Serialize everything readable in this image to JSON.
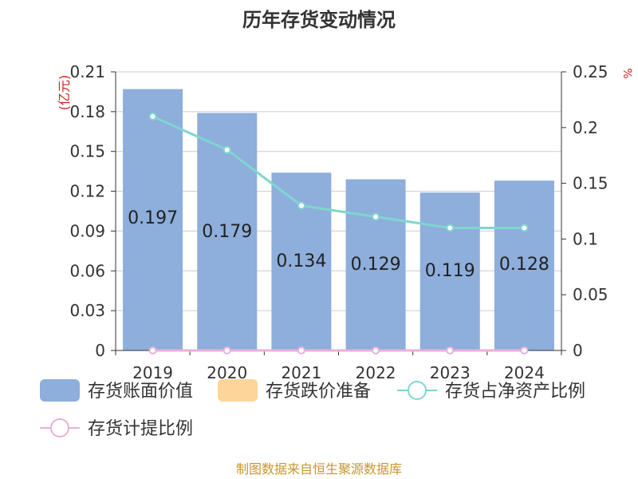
{
  "chart_data": {
    "type": "bar",
    "title": "历年存货变动情况",
    "categories": [
      "2019",
      "2020",
      "2021",
      "2022",
      "2023",
      "2024"
    ],
    "y_left_unit": "(亿元)",
    "y_right_unit": "%",
    "y_left_ticks": [
      "0",
      "0.03",
      "0.06",
      "0.09",
      "0.12",
      "0.15",
      "0.18",
      "0.21"
    ],
    "y_right_ticks": [
      "0",
      "0.05",
      "0.1",
      "0.15",
      "0.2",
      "0.25"
    ],
    "ylim_left": [
      0,
      0.21
    ],
    "ylim_right": [
      0,
      0.25
    ],
    "grid": true,
    "legend_position": "bottom",
    "series": [
      {
        "name": "存货账面价值",
        "kind": "bar",
        "axis": "left",
        "color": "#8eaedb",
        "values": [
          0.197,
          0.179,
          0.134,
          0.129,
          0.119,
          0.128
        ],
        "labels": [
          "0.197",
          "0.179",
          "0.134",
          "0.129",
          "0.119",
          "0.128"
        ]
      },
      {
        "name": "存货跌价准备",
        "kind": "bar",
        "axis": "left",
        "color": "#fdd49a",
        "values": [
          0,
          0,
          0,
          0,
          0,
          0
        ]
      },
      {
        "name": "存货占净资产比例",
        "kind": "line",
        "axis": "right",
        "color": "#7fd6cf",
        "values": [
          0.21,
          0.18,
          0.13,
          0.12,
          0.11,
          0.11
        ]
      },
      {
        "name": "存货计提比例",
        "kind": "line",
        "axis": "right",
        "color": "#e8b1d8",
        "values": [
          0,
          0,
          0,
          0,
          0,
          0
        ]
      }
    ]
  },
  "source_note": "制图数据来自恒生聚源数据库"
}
